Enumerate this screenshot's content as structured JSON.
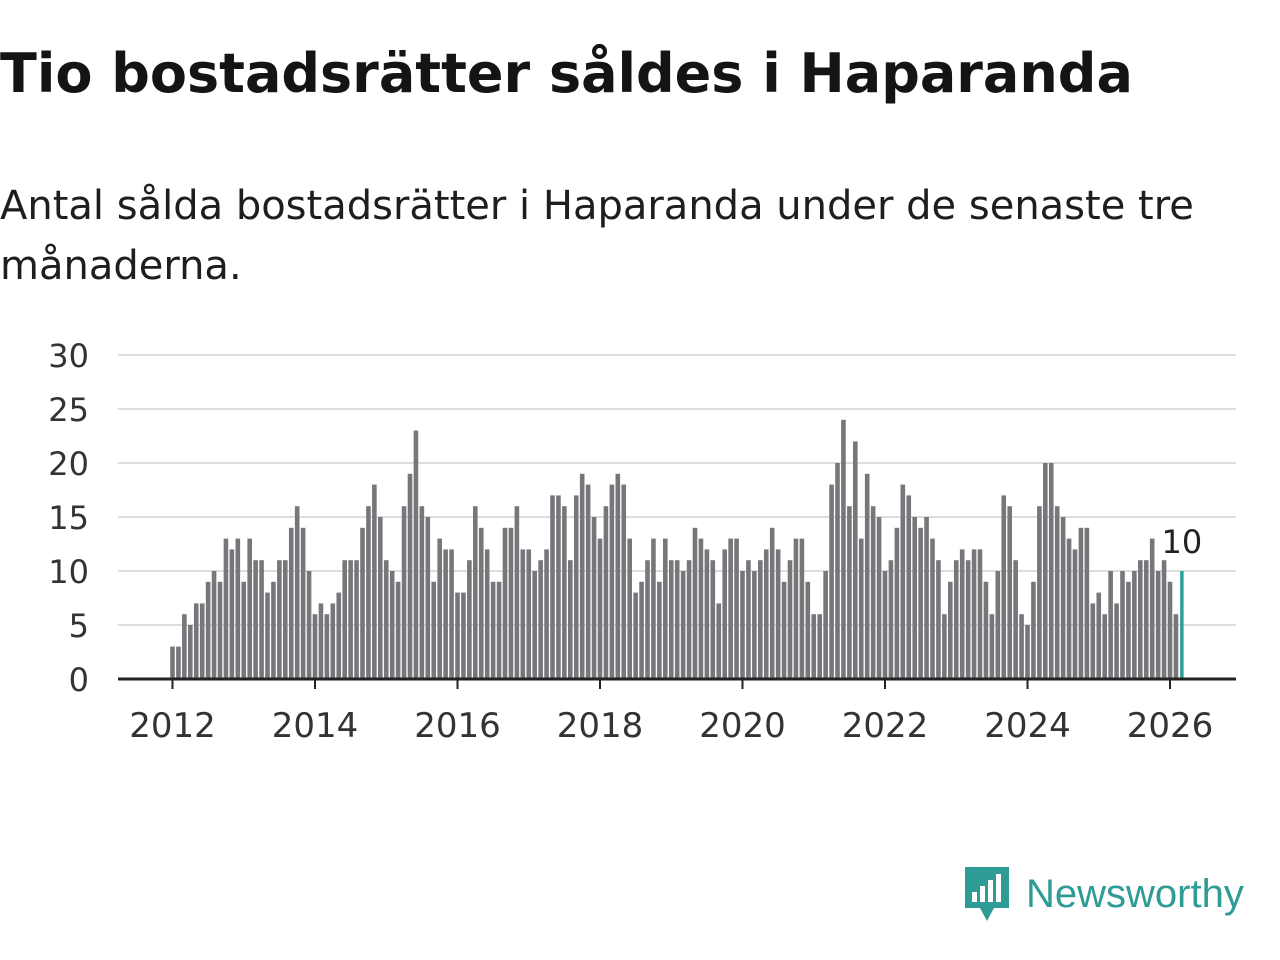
{
  "header": {
    "title": "Tio bostadsrätter såldes i Haparanda",
    "subtitle": "Antal sålda bostadsrätter i Haparanda under de senaste tre månaderna."
  },
  "branding": {
    "logo_text": "Newsworthy",
    "logo_color": "#2e9c94"
  },
  "colors": {
    "bar": "#77767b",
    "highlight": "#2aa198",
    "grid": "#dddddd",
    "axis": "#222222",
    "text": "#333333"
  },
  "chart_data": {
    "type": "bar",
    "title": "Tio bostadsrätter såldes i Haparanda",
    "xlabel": "",
    "ylabel": "",
    "ylim": [
      0,
      30
    ],
    "yticks": [
      0,
      5,
      10,
      15,
      20,
      25,
      30
    ],
    "xticks": [
      "2012",
      "2014",
      "2016",
      "2018",
      "2020",
      "2022",
      "2024",
      "2026"
    ],
    "x_start": "2012-01",
    "x_end": "2026-03",
    "highlight": {
      "label": "2026-03",
      "value": 10,
      "annotation": "10"
    },
    "values": [
      3,
      3,
      6,
      5,
      7,
      7,
      9,
      10,
      9,
      13,
      12,
      13,
      9,
      13,
      11,
      11,
      8,
      9,
      11,
      11,
      14,
      16,
      14,
      10,
      6,
      7,
      6,
      7,
      8,
      11,
      11,
      11,
      14,
      16,
      18,
      15,
      11,
      10,
      9,
      16,
      19,
      23,
      16,
      15,
      9,
      13,
      12,
      12,
      8,
      8,
      11,
      16,
      14,
      12,
      9,
      9,
      14,
      14,
      16,
      12,
      12,
      10,
      11,
      12,
      17,
      17,
      16,
      11,
      17,
      19,
      18,
      15,
      13,
      16,
      18,
      19,
      18,
      13,
      8,
      9,
      11,
      13,
      9,
      13,
      11,
      11,
      10,
      11,
      14,
      13,
      12,
      11,
      7,
      12,
      13,
      13,
      10,
      11,
      10,
      11,
      12,
      14,
      12,
      9,
      11,
      13,
      13,
      9,
      6,
      6,
      10,
      18,
      20,
      24,
      16,
      22,
      13,
      19,
      16,
      15,
      10,
      11,
      14,
      18,
      17,
      15,
      14,
      15,
      13,
      11,
      6,
      9,
      11,
      12,
      11,
      12,
      12,
      9,
      6,
      10,
      17,
      16,
      11,
      6,
      5,
      9,
      16,
      20,
      20,
      16,
      15,
      13,
      12,
      14,
      14,
      7,
      8,
      6,
      10,
      7,
      10,
      9,
      10,
      11,
      11,
      13,
      10,
      11,
      9,
      6,
      10
    ]
  }
}
